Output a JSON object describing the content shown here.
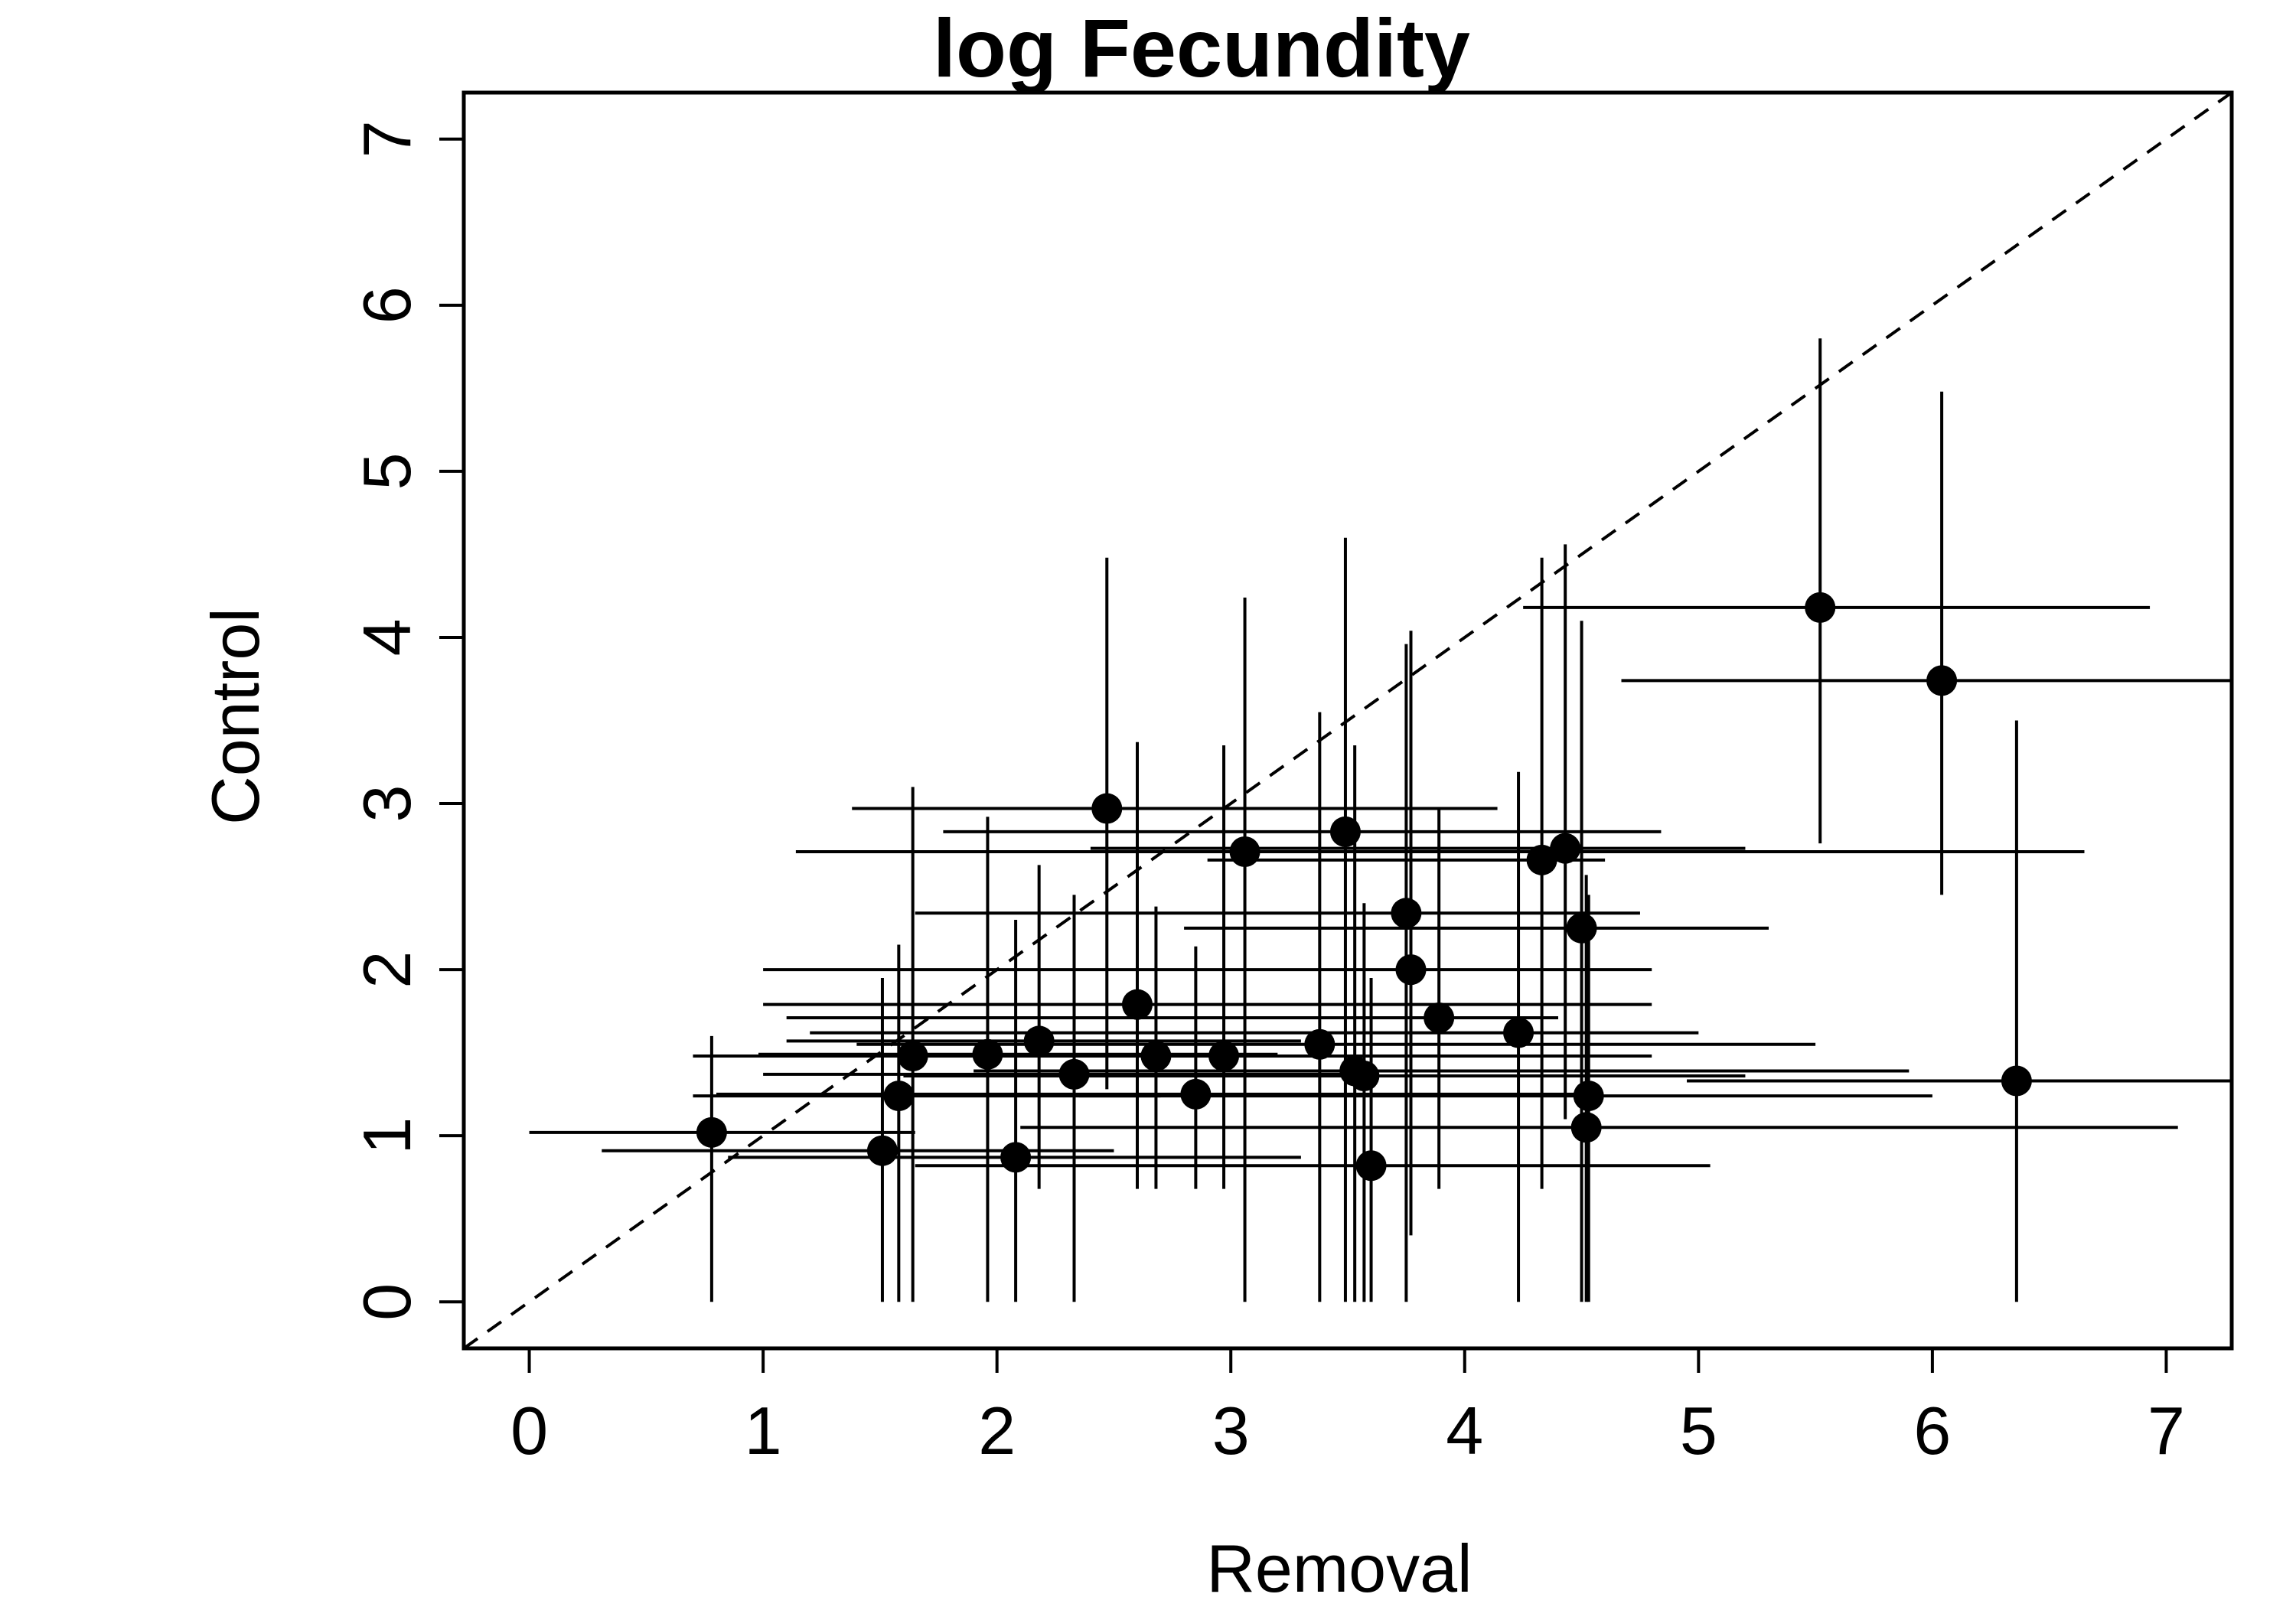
{
  "chart_data": {
    "type": "scatter",
    "title": "log Fecundity",
    "xlabel": "Removal",
    "ylabel": "Control",
    "xlim": [
      -0.28,
      7.28
    ],
    "ylim": [
      -0.28,
      7.28
    ],
    "xticks": [
      "0",
      "1",
      "2",
      "3",
      "4",
      "5",
      "6",
      "7"
    ],
    "yticks": [
      "0",
      "1",
      "2",
      "3",
      "4",
      "5",
      "6",
      "7"
    ],
    "grid": false,
    "reference_line": {
      "style": "dashed",
      "slope": 1,
      "intercept": 0
    },
    "points": [
      {
        "x": 0.78,
        "y": 1.02,
        "xerr": [
          0.0,
          1.65
        ],
        "yerr": [
          0.0,
          1.6
        ]
      },
      {
        "x": 1.51,
        "y": 0.91,
        "xerr": [
          0.31,
          2.5
        ],
        "yerr": [
          0.0,
          1.95
        ]
      },
      {
        "x": 1.58,
        "y": 1.24,
        "xerr": [
          0.7,
          2.7
        ],
        "yerr": [
          0.0,
          2.15
        ]
      },
      {
        "x": 1.64,
        "y": 1.48,
        "xerr": [
          0.7,
          2.9
        ],
        "yerr": [
          0.0,
          3.1
        ]
      },
      {
        "x": 1.96,
        "y": 1.49,
        "xerr": [
          0.98,
          3.2
        ],
        "yerr": [
          0.0,
          2.92
        ]
      },
      {
        "x": 2.08,
        "y": 0.87,
        "xerr": [
          0.85,
          3.3
        ],
        "yerr": [
          0.0,
          2.3
        ]
      },
      {
        "x": 2.18,
        "y": 1.57,
        "xerr": [
          1.1,
          3.3
        ],
        "yerr": [
          0.68,
          2.63
        ]
      },
      {
        "x": 2.33,
        "y": 1.37,
        "xerr": [
          1.0,
          3.5
        ],
        "yerr": [
          0.0,
          2.45
        ]
      },
      {
        "x": 2.47,
        "y": 2.97,
        "xerr": [
          1.38,
          4.14
        ],
        "yerr": [
          1.28,
          4.48
        ]
      },
      {
        "x": 2.6,
        "y": 1.79,
        "xerr": [
          1.0,
          4.8
        ],
        "yerr": [
          0.68,
          3.37
        ]
      },
      {
        "x": 2.68,
        "y": 1.48,
        "xerr": [
          1.3,
          4.4
        ],
        "yerr": [
          0.68,
          2.38
        ]
      },
      {
        "x": 2.85,
        "y": 1.25,
        "xerr": [
          0.8,
          4.5
        ],
        "yerr": [
          0.68,
          2.14
        ]
      },
      {
        "x": 2.97,
        "y": 1.48,
        "xerr": [
          1.2,
          4.8
        ],
        "yerr": [
          0.68,
          3.35
        ]
      },
      {
        "x": 3.06,
        "y": 2.71,
        "xerr": [
          1.14,
          6.65
        ],
        "yerr": [
          0.0,
          4.24
        ]
      },
      {
        "x": 3.38,
        "y": 1.55,
        "xerr": [
          1.4,
          5.5
        ],
        "yerr": [
          0.0,
          3.55
        ]
      },
      {
        "x": 3.49,
        "y": 2.83,
        "xerr": [
          1.77,
          4.84
        ],
        "yerr": [
          0.0,
          4.6
        ]
      },
      {
        "x": 3.53,
        "y": 1.39,
        "xerr": [
          1.9,
          5.9
        ],
        "yerr": [
          0.0,
          3.35
        ]
      },
      {
        "x": 3.57,
        "y": 1.36,
        "xerr": [
          1.6,
          5.2
        ],
        "yerr": [
          0.0,
          2.4
        ]
      },
      {
        "x": 3.6,
        "y": 0.82,
        "xerr": [
          1.65,
          5.05
        ],
        "yerr": [
          0.0,
          1.95
        ]
      },
      {
        "x": 3.75,
        "y": 2.34,
        "xerr": [
          1.65,
          4.75
        ],
        "yerr": [
          0.0,
          3.96
        ]
      },
      {
        "x": 3.77,
        "y": 2.0,
        "xerr": [
          1.0,
          4.8
        ],
        "yerr": [
          0.4,
          4.04
        ]
      },
      {
        "x": 3.89,
        "y": 1.71,
        "xerr": [
          1.1,
          4.4
        ],
        "yerr": [
          0.68,
          2.97
        ]
      },
      {
        "x": 4.23,
        "y": 1.62,
        "xerr": [
          1.2,
          5.0
        ],
        "yerr": [
          0.0,
          3.19
        ]
      },
      {
        "x": 4.33,
        "y": 2.66,
        "xerr": [
          2.9,
          4.6
        ],
        "yerr": [
          0.68,
          4.48
        ]
      },
      {
        "x": 4.43,
        "y": 2.73,
        "xerr": [
          2.4,
          5.2
        ],
        "yerr": [
          1.1,
          4.56
        ]
      },
      {
        "x": 4.5,
        "y": 2.25,
        "xerr": [
          2.8,
          5.3
        ],
        "yerr": [
          0.0,
          4.1
        ]
      },
      {
        "x": 4.52,
        "y": 1.05,
        "xerr": [
          2.1,
          7.05
        ],
        "yerr": [
          0.0,
          2.57
        ]
      },
      {
        "x": 4.53,
        "y": 1.24,
        "xerr": [
          2.35,
          6.0
        ],
        "yerr": [
          0.0,
          2.45
        ]
      },
      {
        "x": 5.52,
        "y": 4.18,
        "xerr": [
          4.25,
          6.93
        ],
        "yerr": [
          2.76,
          5.8
        ]
      },
      {
        "x": 6.04,
        "y": 3.74,
        "xerr": [
          4.67,
          7.28
        ],
        "yerr": [
          2.45,
          5.48
        ]
      },
      {
        "x": 6.36,
        "y": 1.33,
        "xerr": [
          4.95,
          7.28
        ],
        "yerr": [
          0.0,
          3.5
        ]
      }
    ]
  }
}
